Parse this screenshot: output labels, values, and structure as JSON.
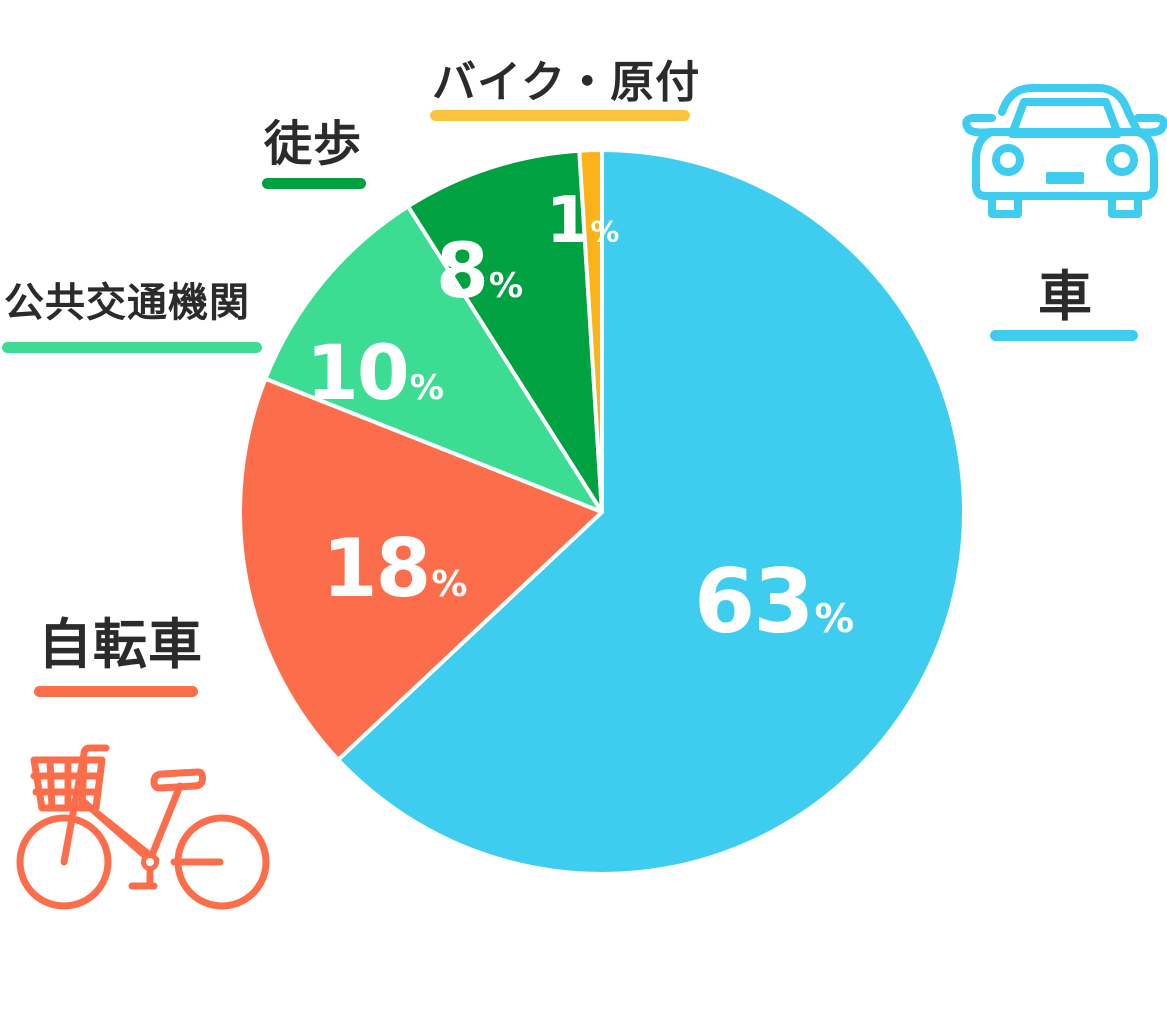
{
  "chart_data": {
    "type": "pie",
    "categories": [
      "車",
      "自転車",
      "公共交通機関",
      "徒歩",
      "バイク・原付"
    ],
    "values": [
      63,
      18,
      10,
      8,
      1
    ],
    "value_suffix": "%",
    "colors": {
      "車": "#3ecdef",
      "自転車": "#fc6e4b",
      "公共交通機関": "#3ddc93",
      "徒歩": "#00a140",
      "バイク・原付": "#fcb31a"
    },
    "underline_colors": {
      "バイク・原付": "#fcc43e"
    },
    "label_text_color": "#2b2b2b",
    "slice_text_color": "#ffffff",
    "slice_separator_color": "#ffffff",
    "start_angle": "12 o'clock",
    "direction": "clockwise",
    "icons": [
      "car-icon",
      "bicycle-icon"
    ]
  }
}
